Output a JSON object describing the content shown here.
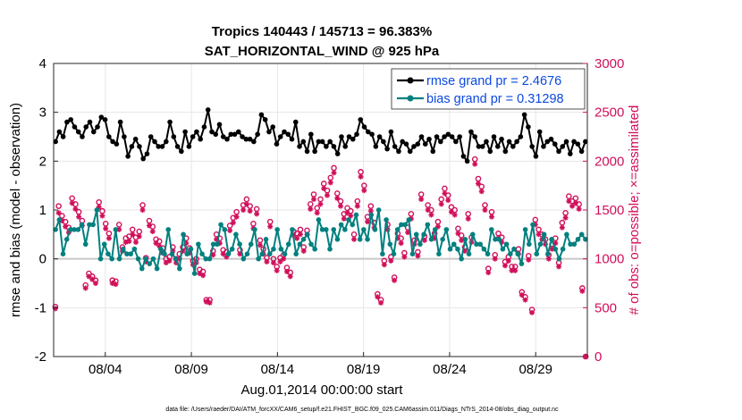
{
  "chart_data": {
    "type": "line",
    "title_line1": "Tropics 140443 / 145713 = 96.383%",
    "title_line2": "SAT_HORIZONTAL_WIND @ 925 hPa",
    "xlabel": "Aug.01,2014 00:00:00 start",
    "ylabel_left": "rmse and bias (model - observation)",
    "ylabel_right": "# of obs: o=possible; ×=assimilated",
    "x_ticks": [
      "08/04",
      "08/09",
      "08/14",
      "08/19",
      "08/24",
      "08/29"
    ],
    "x_tick_days": [
      3,
      8,
      13,
      18,
      23,
      28
    ],
    "xlim_days": [
      0,
      31
    ],
    "ylim_left": [
      -2,
      4
    ],
    "y_ticks_left": [
      "-2",
      "-1",
      "0",
      "1",
      "2",
      "3",
      "4"
    ],
    "ylim_right": [
      0,
      3000
    ],
    "y_ticks_right": [
      "0",
      "500",
      "1000",
      "1500",
      "2000",
      "2500",
      "3000"
    ],
    "grid": true,
    "zero_line": 0,
    "legend": [
      {
        "label": "rmse grand pr = 2.4676",
        "color": "#000000"
      },
      {
        "label": "bias grand pr = 0.31298",
        "color": "#00807f"
      }
    ],
    "series": [
      {
        "name": "rmse",
        "color": "#000000",
        "values": [
          2.4,
          2.6,
          2.5,
          2.8,
          2.85,
          2.7,
          2.6,
          2.5,
          2.7,
          2.8,
          2.6,
          2.7,
          2.9,
          2.85,
          2.5,
          2.4,
          2.35,
          2.8,
          2.5,
          2.1,
          2.3,
          2.45,
          2.3,
          2.05,
          2.15,
          2.5,
          2.4,
          2.3,
          2.3,
          2.4,
          2.8,
          2.5,
          2.3,
          2.2,
          2.6,
          2.3,
          2.5,
          2.6,
          2.45,
          2.7,
          3.05,
          2.6,
          2.55,
          2.75,
          2.5,
          2.45,
          2.55,
          2.55,
          2.6,
          2.5,
          2.45,
          2.45,
          2.4,
          2.55,
          2.95,
          2.85,
          2.6,
          2.7,
          2.35,
          2.5,
          2.6,
          2.55,
          2.45,
          2.8,
          2.3,
          2.4,
          2.2,
          2.55,
          2.2,
          2.4,
          2.4,
          2.3,
          2.4,
          2.3,
          2.15,
          2.5,
          2.3,
          2.5,
          2.45,
          2.55,
          2.85,
          2.7,
          2.6,
          2.55,
          2.3,
          2.5,
          2.4,
          2.25,
          2.6,
          2.3,
          2.2,
          2.4,
          2.35,
          2.2,
          2.3,
          2.35,
          2.5,
          2.35,
          2.45,
          2.2,
          2.5,
          2.4,
          2.5,
          2.55,
          2.5,
          2.4,
          2.5,
          2.1,
          2.0,
          2.6,
          2.5,
          2.3,
          2.3,
          2.4,
          2.2,
          2.5,
          2.3,
          2.45,
          2.2,
          2.4,
          2.3,
          2.4,
          2.5,
          2.95,
          2.7,
          2.3,
          2.1,
          2.6,
          2.3,
          2.4,
          2.45,
          2.35,
          2.2,
          2.3,
          2.4,
          2.15,
          2.4,
          2.35,
          2.2,
          2.4
        ]
      },
      {
        "name": "bias",
        "color": "#00807f",
        "values": [
          0.6,
          0.8,
          0.1,
          0.4,
          0.6,
          0.6,
          0.6,
          0.7,
          0.3,
          0.7,
          0.7,
          1.0,
          0.0,
          0.3,
          0.1,
          0.0,
          0.6,
          0.0,
          0.2,
          0.1,
          0.1,
          0.2,
          0.0,
          -0.2,
          0.0,
          -0.1,
          0.0,
          -0.2,
          0.2,
          0.1,
          0.6,
          0.1,
          0.0,
          -0.2,
          0.5,
          0.1,
          0.2,
          -0.3,
          0.3,
          0.1,
          0.0,
          0.0,
          0.3,
          0.3,
          0.7,
          0.6,
          0.1,
          0.2,
          0.5,
          0.3,
          0.0,
          0.1,
          0.3,
          0.6,
          0.0,
          0.1,
          0.4,
          0.1,
          0.2,
          0.6,
          0.2,
          0.1,
          0.3,
          0.6,
          0.1,
          0.3,
          0.4,
          0.5,
          0.3,
          0.2,
          0.8,
          0.6,
          0.6,
          0.2,
          0.6,
          0.4,
          0.7,
          0.6,
          0.8,
          0.7,
          0.9,
          0.4,
          0.6,
          0.4,
          0.9,
          0.6,
          1.0,
          0.1,
          0.8,
          0.3,
          0.1,
          0.6,
          0.7,
          0.7,
          0.8,
          0.1,
          0.5,
          0.3,
          0.5,
          0.7,
          0.4,
          0.6,
          0.1,
          0.4,
          0.6,
          0.2,
          0.3,
          0.2,
          0.0,
          0.4,
          0.1,
          0.5,
          0.3,
          0.3,
          0.2,
          0.1,
          0.6,
          0.4,
          0.4,
          0.2,
          0.3,
          0.1,
          0.2,
          0.1,
          -0.1,
          0.6,
          0.3,
          0.7,
          0.1,
          0.3,
          0.5,
          0.1,
          0.4,
          0.2,
          0.0,
          0.2,
          0.5,
          0.3,
          0.3,
          0.4,
          0.5,
          0.4
        ]
      },
      {
        "name": "obs possible",
        "color": "#d10f5a",
        "marker": "o",
        "values": [
          510,
          1540,
          1440,
          1380,
          1320,
          1620,
          1560,
          1480,
          1390,
          730,
          850,
          820,
          780,
          1580,
          1490,
          1360,
          1260,
          780,
          770,
          1350,
          1120,
          1210,
          1230,
          1300,
          1220,
          1280,
          1550,
          1010,
          1390,
          1330,
          1200,
          1180,
          1110,
          1000,
          1020,
          1120,
          1000,
          1050,
          1120,
          1210,
          1110,
          980,
          1000,
          890,
          870,
          580,
          580,
          1080,
          1250,
          1210,
          1090,
          1070,
          1340,
          1420,
          1480,
          1090,
          1550,
          1610,
          1540,
          1360,
          1510,
          1190,
          1100,
          1010,
          1380,
          1000,
          920,
          1010,
          1040,
          910,
          860,
          1280,
          1260,
          1300,
          1120,
          1290,
          1560,
          1660,
          1520,
          1610,
          1770,
          1700,
          1830,
          1930,
          1670,
          1590,
          1460,
          1520,
          1490,
          1250,
          1590,
          1890,
          1750,
          1430,
          1540,
          1370,
          640,
          580,
          980,
          1350,
          1020,
          810,
          1260,
          1210,
          1060,
          1320,
          1460,
          1190,
          1070,
          1660,
          1230,
          1550,
          1500,
          1260,
          1380,
          1610,
          1720,
          1650,
          1530,
          1500,
          1310,
          1240,
          1120,
          1460,
          1220,
          2020,
          1820,
          1740,
          1550,
          900,
          1480,
          1040,
          1260,
          1220,
          970,
          1020,
          920,
          920,
          1100,
          660,
          610,
          1030,
          480,
          1400,
          1300,
          1250,
          1200,
          1040,
          1150,
          1210,
          960,
          1370,
          1470,
          1640,
          1590,
          1620,
          1560,
          700,
          0
        ]
      },
      {
        "name": "obs assimilated",
        "color": "#d10f5a",
        "marker": "x",
        "values": [
          490,
          1470,
          1390,
          1330,
          1270,
          1570,
          1510,
          1430,
          1340,
          700,
          820,
          790,
          750,
          1530,
          1440,
          1310,
          1210,
          750,
          740,
          1300,
          1080,
          1170,
          1180,
          1250,
          1170,
          1230,
          1500,
          970,
          1340,
          1280,
          1160,
          1130,
          1060,
          960,
          980,
          1080,
          960,
          1000,
          1080,
          1160,
          1060,
          940,
          960,
          850,
          830,
          560,
          550,
          1040,
          1200,
          1160,
          1050,
          1020,
          1290,
          1370,
          1430,
          1050,
          1500,
          1560,
          1490,
          1310,
          1460,
          1140,
          1050,
          970,
          1330,
          960,
          880,
          970,
          1000,
          870,
          820,
          1240,
          1210,
          1250,
          1080,
          1250,
          1510,
          1610,
          1470,
          1560,
          1720,
          1650,
          1780,
          1880,
          1620,
          1540,
          1410,
          1470,
          1440,
          1200,
          1540,
          1840,
          1700,
          1380,
          1490,
          1320,
          610,
          550,
          940,
          1300,
          980,
          780,
          1210,
          1160,
          1020,
          1270,
          1410,
          1150,
          1030,
          1610,
          1190,
          1500,
          1450,
          1210,
          1330,
          1560,
          1670,
          1600,
          1480,
          1450,
          1260,
          1190,
          1080,
          1410,
          1170,
          1970,
          1770,
          1690,
          1500,
          860,
          1430,
          1000,
          1210,
          1170,
          930,
          980,
          880,
          880,
          1050,
          630,
          580,
          990,
          450,
          1350,
          1250,
          1200,
          1150,
          1000,
          1100,
          1160,
          920,
          1320,
          1420,
          1590,
          1540,
          1570,
          1510,
          670,
          0
        ]
      }
    ]
  },
  "footnote": "data file: /Users/raeder/DAI/ATM_forcXX/CAM6_setup/f.e21.FHIST_BGC.f09_025.CAM6assim.011/Diags_NTrS_2014-08/obs_diag_output.nc"
}
